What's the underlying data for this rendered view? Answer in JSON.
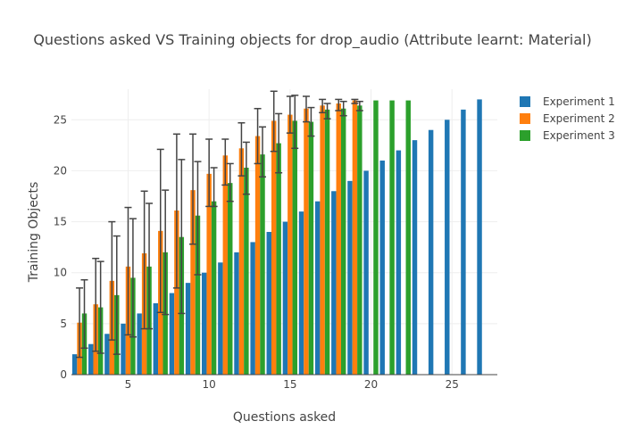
{
  "chart_data": {
    "type": "bar",
    "title": "Questions asked VS Training objects for drop_audio (Attribute learnt: Material)",
    "xlabel": "Questions asked",
    "ylabel": "Training Objects",
    "xlim": [
      1.5,
      27.8
    ],
    "ylim": [
      0,
      28
    ],
    "xticks": [
      5,
      10,
      15,
      20,
      25
    ],
    "yticks": [
      0,
      5,
      10,
      15,
      20,
      25
    ],
    "grid": true,
    "legend_position": "top-right",
    "series": [
      {
        "name": "Experiment 1",
        "color": "#1f77b4",
        "x": [
          2,
          3,
          4,
          5,
          6,
          7,
          8,
          9,
          10,
          11,
          12,
          13,
          14,
          15,
          16,
          17,
          18,
          19,
          20,
          21,
          22,
          23,
          24,
          25,
          26,
          27
        ],
        "values": [
          2,
          3,
          4,
          5,
          6,
          7,
          8,
          9,
          10,
          11,
          12,
          13,
          14,
          15,
          16,
          17,
          18,
          19,
          20,
          21,
          22,
          23,
          24,
          25,
          26,
          27
        ]
      },
      {
        "name": "Experiment 2",
        "color": "#ff7f0e",
        "x": [
          2,
          3,
          4,
          5,
          6,
          7,
          8,
          9,
          10,
          11,
          12,
          13,
          14,
          15,
          16,
          17,
          18,
          19
        ],
        "values": [
          5.1,
          6.9,
          9.2,
          10.6,
          11.9,
          14.1,
          16.1,
          18.1,
          19.7,
          21.5,
          22.2,
          23.4,
          24.9,
          25.5,
          26.1,
          26.4,
          26.6,
          26.9
        ],
        "error_low": [
          1.7,
          2.3,
          3.4,
          3.9,
          4.5,
          6.1,
          8.5,
          12.8,
          16.5,
          18.6,
          19.5,
          20.7,
          21.9,
          23.7,
          24.8,
          25.7,
          25.9,
          26.6
        ],
        "error_high": [
          8.5,
          11.4,
          15.0,
          16.4,
          18.0,
          22.1,
          23.6,
          23.6,
          23.1,
          23.1,
          24.7,
          26.1,
          27.8,
          27.3,
          27.3,
          27.0,
          27.0,
          27.0
        ]
      },
      {
        "name": "Experiment 3",
        "color": "#2ca02c",
        "x": [
          2,
          3,
          4,
          5,
          6,
          7,
          8,
          9,
          10,
          11,
          12,
          13,
          14,
          15,
          16,
          17,
          18,
          19,
          20,
          21,
          22
        ],
        "values": [
          6.0,
          6.6,
          7.8,
          9.5,
          10.6,
          12.0,
          13.5,
          15.6,
          17.0,
          18.8,
          20.3,
          21.6,
          22.7,
          24.9,
          24.8,
          26.0,
          26.1,
          26.4,
          26.9,
          26.9,
          26.9
        ],
        "error_low": [
          2.6,
          2.1,
          2.0,
          3.7,
          4.5,
          5.9,
          6.0,
          9.8,
          16.5,
          17.0,
          17.7,
          19.4,
          19.8,
          22.2,
          23.4,
          25.1,
          25.4,
          25.9,
          26.9,
          26.9,
          26.9
        ],
        "error_high": [
          9.3,
          11.1,
          13.6,
          15.3,
          16.8,
          18.1,
          21.1,
          20.9,
          20.3,
          20.7,
          22.8,
          24.3,
          25.6,
          27.4,
          26.2,
          26.6,
          26.8,
          26.8,
          26.9,
          26.9,
          26.9
        ]
      }
    ]
  }
}
